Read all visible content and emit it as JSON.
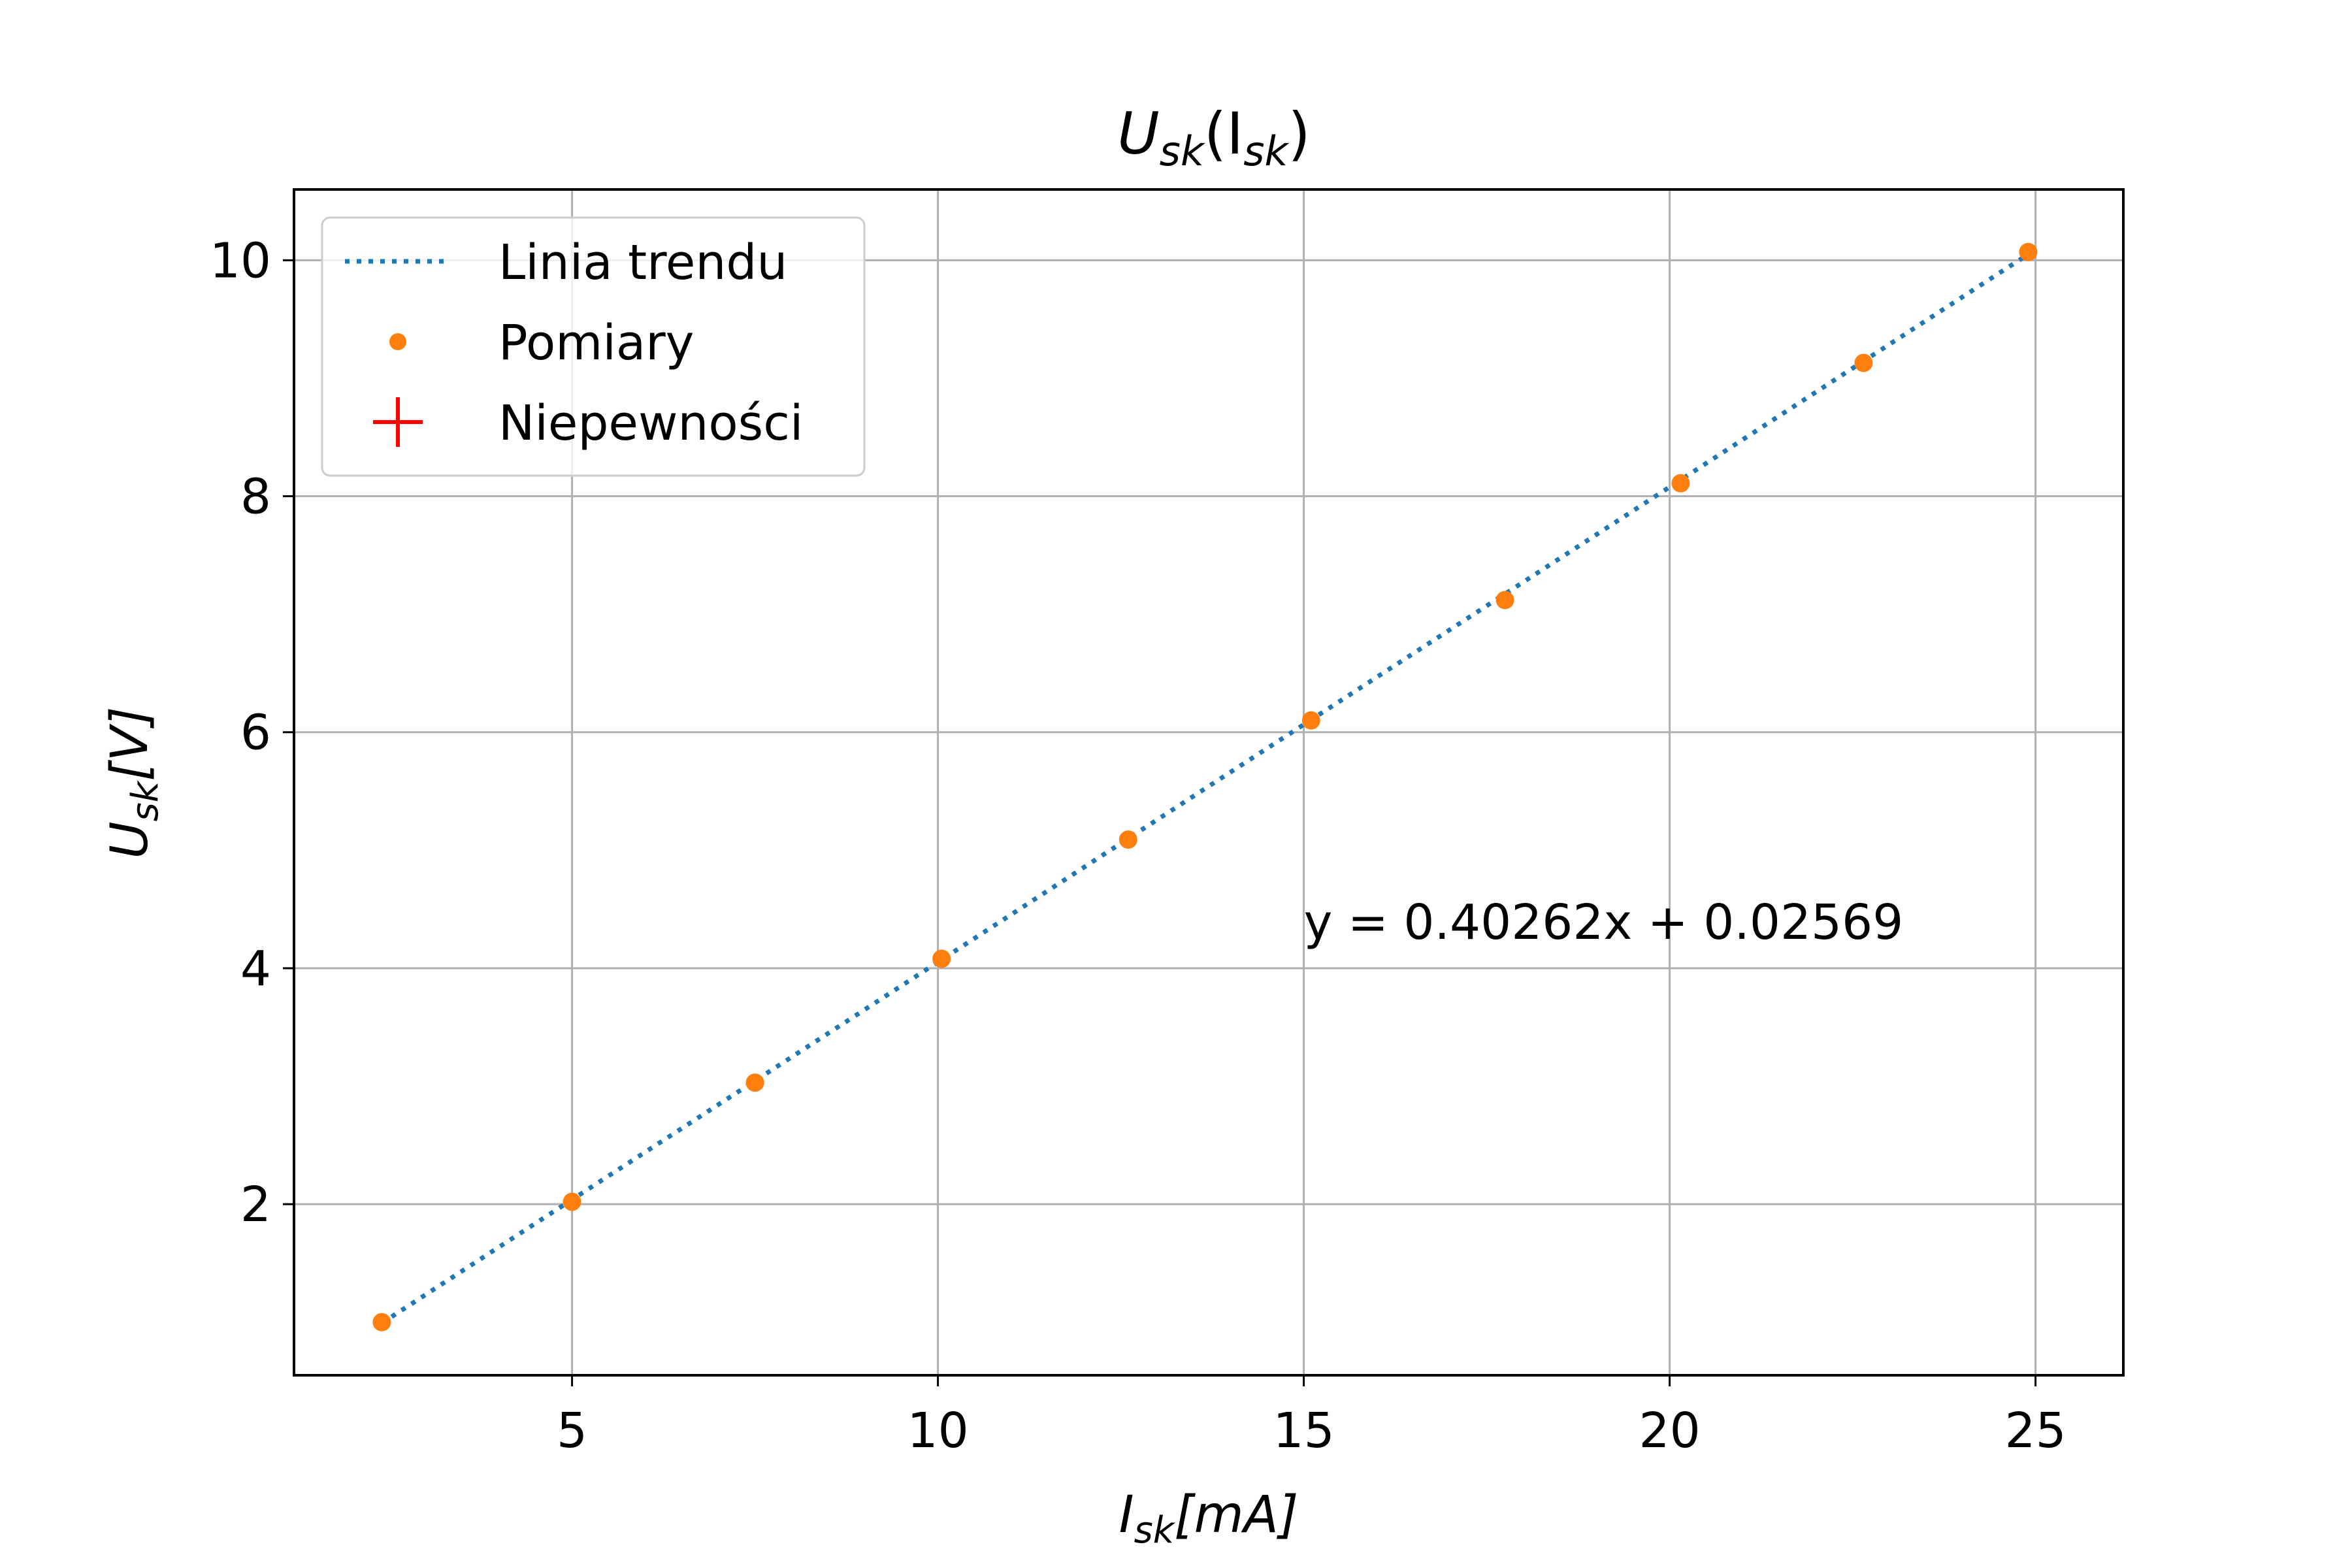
{
  "chart_data": {
    "type": "scatter",
    "title": {
      "main": "U",
      "sub": "sk",
      "mid": "(I",
      "sub2": "sk",
      "end": ")"
    },
    "xlabel": {
      "main": "I",
      "sub": "sk",
      "rest": "[mA]"
    },
    "ylabel": {
      "main": "U",
      "sub": "sk",
      "rest": "[V]"
    },
    "xlim": [
      1.2,
      26.2
    ],
    "ylim": [
      0.55,
      10.6
    ],
    "x_ticks": [
      5,
      10,
      15,
      20,
      25
    ],
    "y_ticks": [
      2,
      4,
      6,
      8,
      10
    ],
    "grid": true,
    "legend_position": "top-left",
    "legend": [
      {
        "label": "Linia trendu",
        "marker": "dotted-line",
        "color": "#1f77b4"
      },
      {
        "label": "Pomiary",
        "marker": "dot",
        "color": "#ff7f0e"
      },
      {
        "label": "Niepewności",
        "marker": "plus",
        "color": "#ff0000"
      }
    ],
    "series": [
      {
        "name": "Pomiary",
        "color": "#ff7f0e",
        "x": [
          2.4,
          5.0,
          7.5,
          10.05,
          12.6,
          15.1,
          17.75,
          20.15,
          22.65,
          24.9
        ],
        "y": [
          1.0,
          2.02,
          3.03,
          4.08,
          5.09,
          6.1,
          7.12,
          8.11,
          9.13,
          10.07
        ]
      }
    ],
    "trend": {
      "name": "Linia trendu",
      "color": "#1f77b4",
      "slope": 0.40262,
      "intercept": 0.02569,
      "x_range": [
        2.4,
        24.9
      ]
    },
    "annotation": {
      "text": "y = 0.40262x + 0.02569",
      "x": 15.0,
      "y": 4.25
    }
  }
}
